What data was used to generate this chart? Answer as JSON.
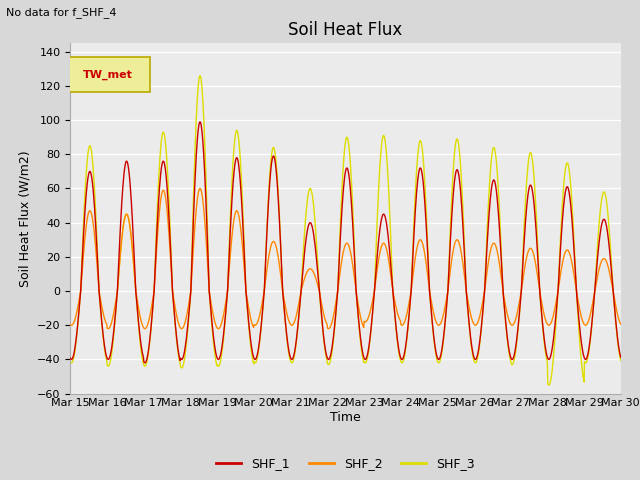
{
  "title": "Soil Heat Flux",
  "top_left_text": "No data for f_SHF_4",
  "ylabel": "Soil Heat Flux (W/m2)",
  "xlabel": "Time",
  "legend_label": "TW_met",
  "ylim": [
    -60,
    145
  ],
  "yticks": [
    -60,
    -40,
    -20,
    0,
    20,
    40,
    60,
    80,
    100,
    120,
    140
  ],
  "x_tick_labels": [
    "Mar 15",
    "Mar 16",
    "Mar 17",
    "Mar 18",
    "Mar 19",
    "Mar 20",
    "Mar 21",
    "Mar 22",
    "Mar 23",
    "Mar 24",
    "Mar 25",
    "Mar 26",
    "Mar 27",
    "Mar 28",
    "Mar 29",
    "Mar 30"
  ],
  "line_colors": {
    "SHF_1": "#cc0000",
    "SHF_2": "#ff8800",
    "SHF_3": "#dddd00"
  },
  "figure_bg_color": "#d8d8d8",
  "plot_bg_color": "#ebebeb",
  "grid_color": "#ffffff",
  "legend_box_facecolor": "#eeee99",
  "legend_box_edgecolor": "#bbaa00",
  "title_fontsize": 12,
  "axis_label_fontsize": 9,
  "tick_fontsize": 8,
  "n_days": 15,
  "n_points_per_day": 96,
  "day_peaks_shf1": [
    70,
    76,
    76,
    99,
    78,
    79,
    40,
    72,
    45,
    72,
    71,
    65,
    62,
    61,
    42
  ],
  "day_peaks_shf2": [
    47,
    45,
    59,
    60,
    47,
    29,
    13,
    28,
    28,
    30,
    30,
    28,
    25,
    24,
    19
  ],
  "day_peaks_shf3": [
    85,
    45,
    93,
    126,
    94,
    84,
    60,
    90,
    91,
    88,
    89,
    84,
    81,
    75,
    58
  ],
  "day_night_shf1": [
    40,
    40,
    42,
    40,
    40,
    40,
    40,
    40,
    40,
    40,
    40,
    40,
    40,
    40,
    40
  ],
  "day_night_shf2": [
    20,
    22,
    22,
    22,
    22,
    20,
    20,
    22,
    18,
    20,
    20,
    20,
    20,
    20,
    20
  ],
  "day_night_shf3": [
    42,
    44,
    44,
    45,
    44,
    42,
    42,
    43,
    42,
    42,
    42,
    42,
    43,
    55,
    42
  ]
}
